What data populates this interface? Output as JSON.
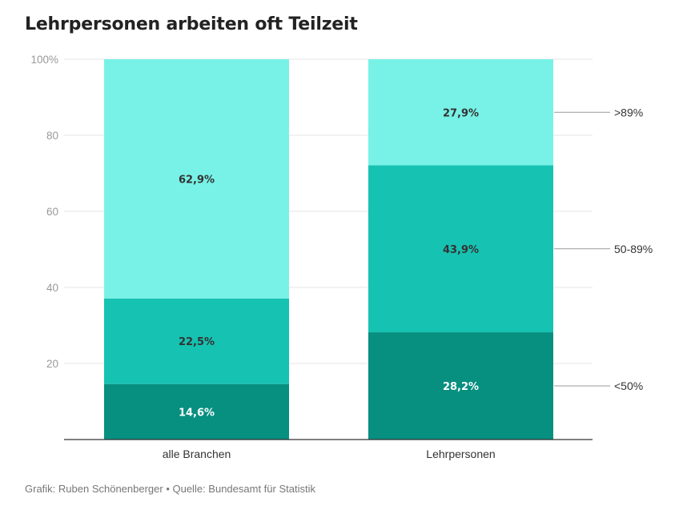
{
  "chart_data": {
    "type": "bar",
    "stacked": true,
    "title": "Lehrpersonen arbeiten oft Teilzeit",
    "categories": [
      "alle Branchen",
      "Lehrpersonen"
    ],
    "series": [
      {
        "name": "<50%",
        "values": [
          14.6,
          28.2
        ],
        "labels": [
          "14,6%",
          "28,2%"
        ],
        "color": "#078f80",
        "label_color": "#ffffff"
      },
      {
        "name": "50-89%",
        "values": [
          22.5,
          43.9
        ],
        "labels": [
          "22,5%",
          "43,9%"
        ],
        "color": "#16c2b2",
        "label_color": "#333333"
      },
      {
        "name": ">89%",
        "values": [
          62.9,
          27.9
        ],
        "labels": [
          "62,9%",
          "27,9%"
        ],
        "color": "#78f2e6",
        "label_color": "#333333"
      }
    ],
    "ylim": [
      0,
      100
    ],
    "yticks": [
      20,
      40,
      60,
      80,
      100
    ],
    "ytick_labels": [
      "20",
      "40",
      "60",
      "80",
      "100%"
    ],
    "grid": true,
    "legend_placement": "right",
    "xlabel": "",
    "ylabel": ""
  },
  "footer": {
    "credit": "Grafik: Ruben Schönenberger • Quelle: Bundesamt für Statistik"
  }
}
